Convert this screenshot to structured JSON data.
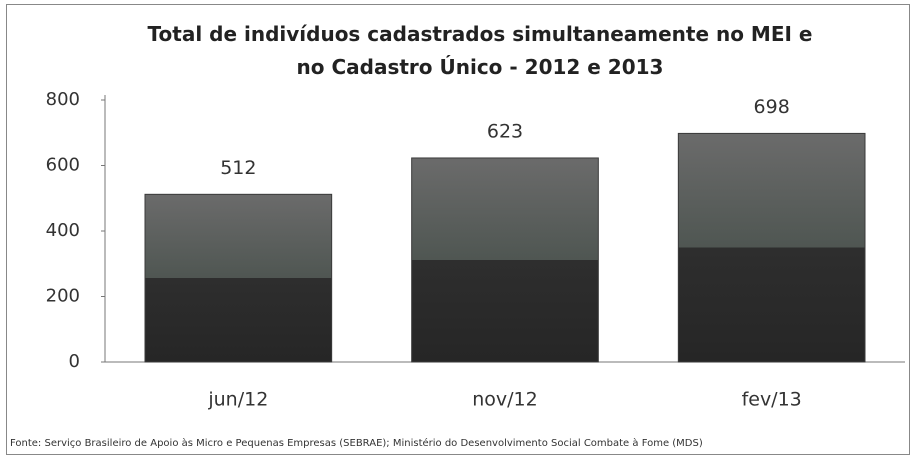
{
  "chart_data": {
    "type": "bar",
    "title": "Total de indivíduos cadastrados simultaneamente no MEI e no Cadastro Único - 2012 e 2013",
    "categories": [
      "jun/12",
      "nov/12",
      "fev/13"
    ],
    "values": [
      512,
      623,
      698
    ],
    "color": "#3a3a3a",
    "ylim": [
      0,
      800
    ],
    "yticks": [
      0,
      200,
      400,
      600,
      800
    ],
    "grid": false,
    "source": "Fonte:  Serviço Brasileiro de Apoio às Micro e Pequenas Empresas (SEBRAE); Ministério do Desenvolvimento Social Combate à Fome (MDS)"
  }
}
